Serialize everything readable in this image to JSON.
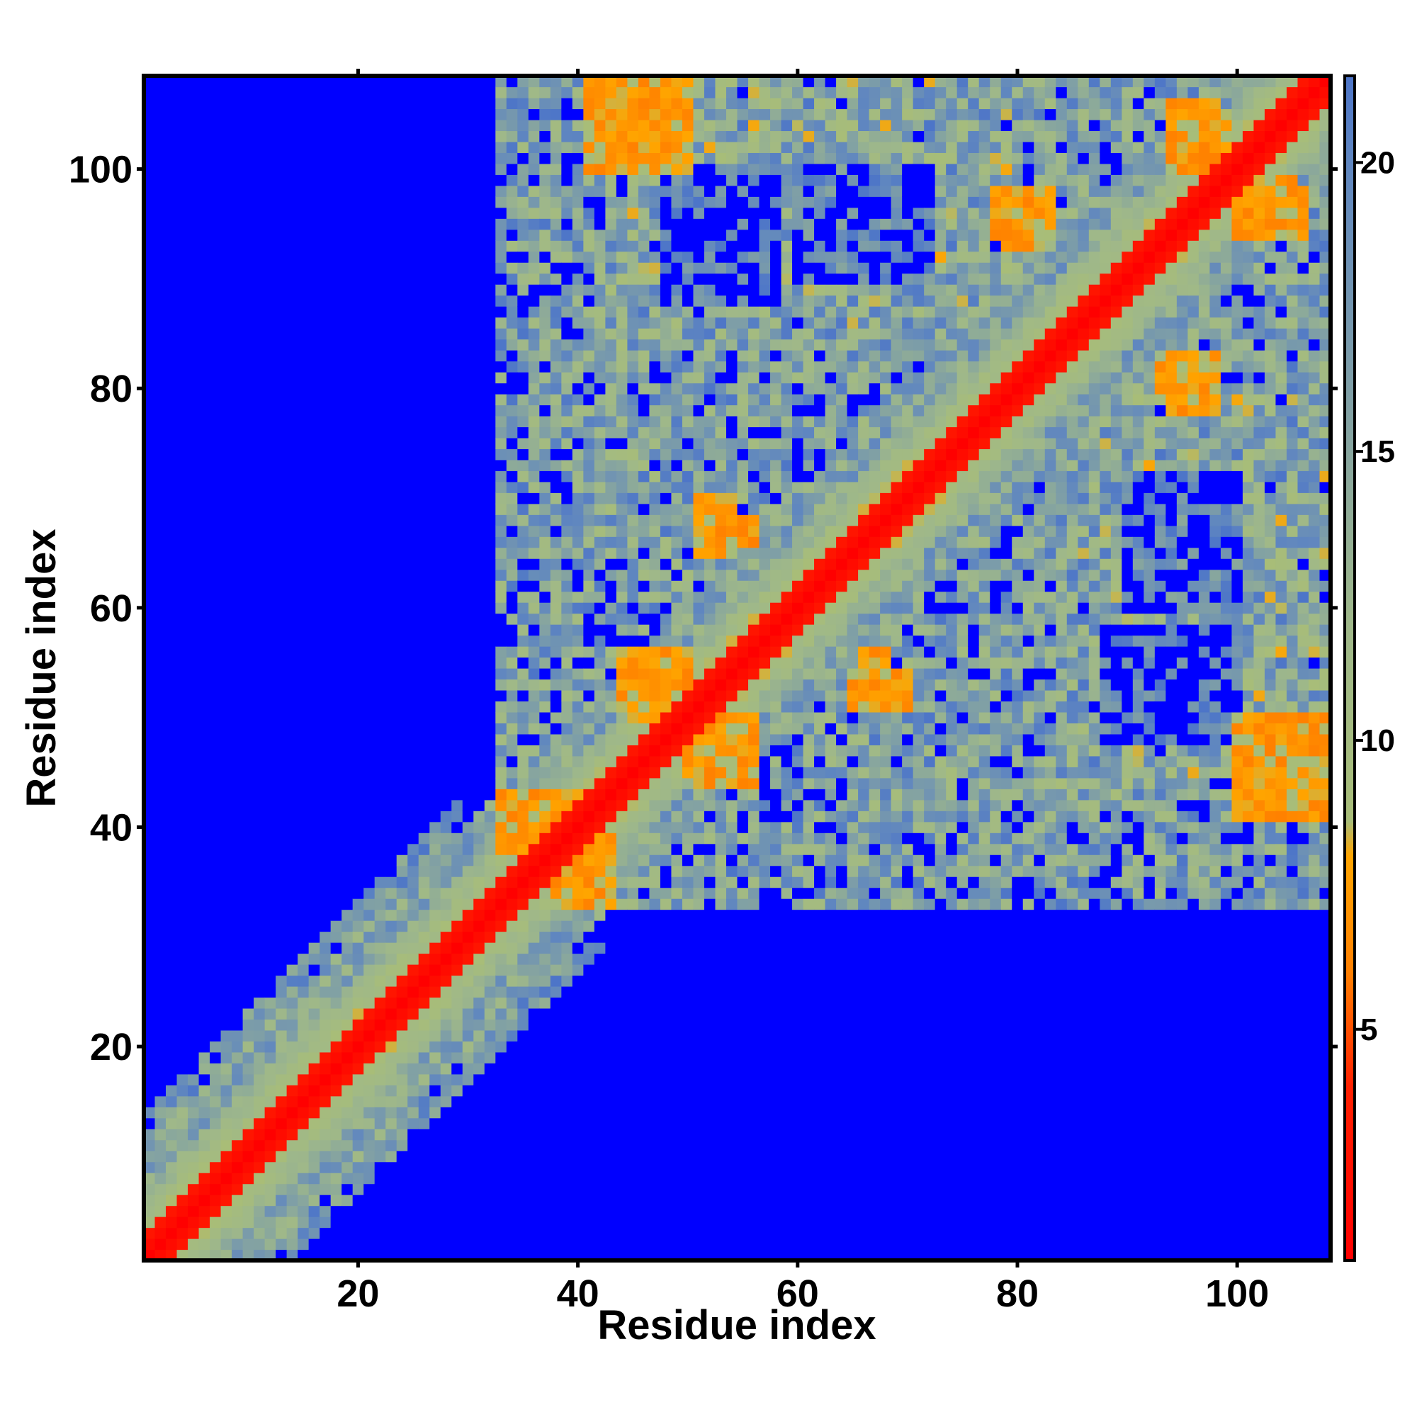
{
  "chart_data": {
    "type": "heatmap",
    "title": "",
    "xlabel": "Residue index",
    "ylabel": "Residue index",
    "n_residues": 108,
    "xlim": [
      1,
      108
    ],
    "ylim": [
      1,
      108
    ],
    "x_ticks": [
      20,
      40,
      60,
      80,
      100
    ],
    "y_ticks": [
      20,
      40,
      60,
      80,
      100
    ],
    "colorbar": {
      "range": [
        1,
        21.5
      ],
      "ticks": [
        5,
        10,
        15,
        20
      ],
      "cutoff": 21.5,
      "stops": [
        {
          "value": 1,
          "color": "#ff0000"
        },
        {
          "value": 4,
          "color": "#ff2000"
        },
        {
          "value": 6,
          "color": "#ff8000"
        },
        {
          "value": 8,
          "color": "#ffa500"
        },
        {
          "value": 8.6,
          "color": "#a8bd78"
        },
        {
          "value": 12,
          "color": "#9fb889"
        },
        {
          "value": 16,
          "color": "#7f9fa6"
        },
        {
          "value": 20,
          "color": "#5f86c0"
        },
        {
          "value": 21.5,
          "color": "#4d75c8"
        }
      ],
      "beyond_cutoff_color": "#0000ff"
    },
    "matrix_description_values": {
      "diagonal_band_width": 2,
      "helix_bands": [
        {
          "start": 2,
          "end": 30
        },
        {
          "start": 43,
          "end": 80
        },
        {
          "start": 84,
          "end": 108
        }
      ],
      "contact_patches": [
        {
          "x": [
            44,
            50
          ],
          "y": [
            100,
            108
          ],
          "value": 6
        },
        {
          "x": [
            33,
            40
          ],
          "y": [
            38,
            43
          ],
          "value": 6
        },
        {
          "x": [
            45,
            50
          ],
          "y": [
            50,
            56
          ],
          "value": 6
        },
        {
          "x": [
            51,
            56
          ],
          "y": [
            44,
            50
          ],
          "value": 6
        },
        {
          "x": [
            53,
            56
          ],
          "y": [
            66,
            68
          ],
          "value": 6
        },
        {
          "x": [
            65,
            70
          ],
          "y": [
            51,
            54
          ],
          "value": 6
        },
        {
          "x": [
            100,
            108
          ],
          "y": [
            41,
            49
          ],
          "value": 6
        },
        {
          "x": [
            94,
            98
          ],
          "y": [
            78,
            83
          ],
          "value": 6
        },
        {
          "x": [
            94,
            98
          ],
          "y": [
            100,
            106
          ],
          "value": 6
        },
        {
          "x": [
            101,
            105
          ],
          "y": [
            94,
            99
          ],
          "value": 6
        },
        {
          "x": [
            79,
            82
          ],
          "y": [
            93,
            98
          ],
          "value": 6
        }
      ]
    }
  }
}
